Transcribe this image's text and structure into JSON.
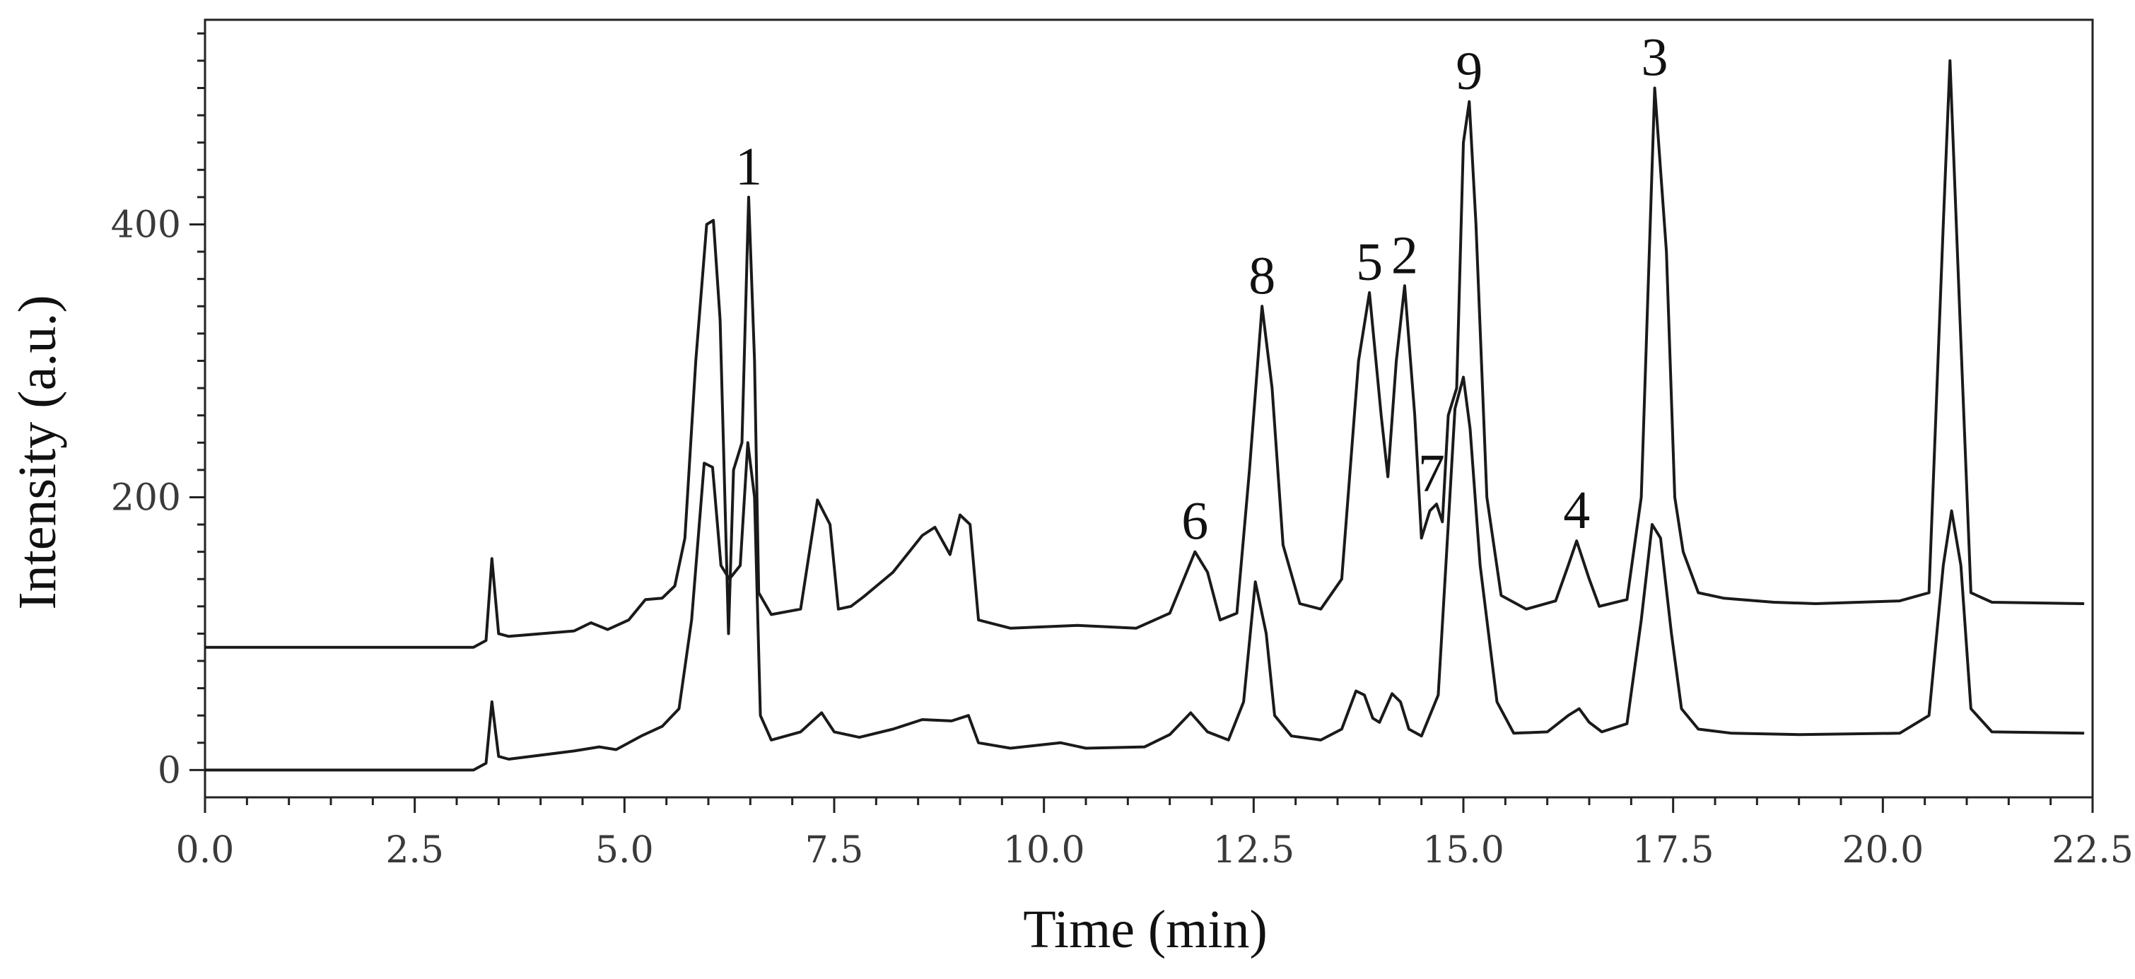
{
  "chart_data": {
    "type": "line",
    "title": "",
    "xlabel": "Time (min)",
    "ylabel": "Intensity (a.u.)",
    "xlim": [
      0,
      22.5
    ],
    "ylim": [
      -20,
      550
    ],
    "x_ticks": [
      "0.0",
      "2.5",
      "5.0",
      "7.5",
      "10.0",
      "12.5",
      "15.0",
      "17.5",
      "20.0",
      "22.5"
    ],
    "x_tick_values": [
      0,
      2.5,
      5,
      7.5,
      10,
      12.5,
      15,
      17.5,
      20,
      22.5
    ],
    "y_ticks": [
      "0",
      "200",
      "400"
    ],
    "y_tick_values": [
      0,
      200,
      400
    ],
    "grid": false,
    "legend": "none",
    "line_color": "#1a1a1a",
    "series": [
      {
        "baseline_start": 90,
        "baseline_end": 122,
        "points": [
          [
            0,
            90
          ],
          [
            3.2,
            90
          ],
          [
            3.35,
            95
          ],
          [
            3.42,
            155
          ],
          [
            3.5,
            100
          ],
          [
            3.62,
            98
          ],
          [
            4.4,
            102
          ],
          [
            4.6,
            108
          ],
          [
            4.8,
            103
          ],
          [
            5.05,
            110
          ],
          [
            5.25,
            125
          ],
          [
            5.45,
            126
          ],
          [
            5.6,
            135
          ],
          [
            5.72,
            170
          ],
          [
            5.85,
            300
          ],
          [
            5.98,
            400
          ],
          [
            6.06,
            403
          ],
          [
            6.14,
            330
          ],
          [
            6.24,
            100
          ],
          [
            6.3,
            220
          ],
          [
            6.4,
            240
          ],
          [
            6.48,
            420
          ],
          [
            6.55,
            300
          ],
          [
            6.6,
            130
          ],
          [
            6.75,
            114
          ],
          [
            7.1,
            118
          ],
          [
            7.3,
            198
          ],
          [
            7.45,
            180
          ],
          [
            7.55,
            118
          ],
          [
            7.7,
            120
          ],
          [
            7.85,
            127
          ],
          [
            8.2,
            145
          ],
          [
            8.55,
            172
          ],
          [
            8.7,
            178
          ],
          [
            8.88,
            158
          ],
          [
            9.0,
            187
          ],
          [
            9.12,
            180
          ],
          [
            9.22,
            110
          ],
          [
            9.6,
            104
          ],
          [
            10.4,
            106
          ],
          [
            11.1,
            104
          ],
          [
            11.5,
            115
          ],
          [
            11.8,
            160
          ],
          [
            11.95,
            145
          ],
          [
            12.1,
            110
          ],
          [
            12.3,
            115
          ],
          [
            12.45,
            220
          ],
          [
            12.6,
            340
          ],
          [
            12.72,
            280
          ],
          [
            12.85,
            165
          ],
          [
            13.05,
            122
          ],
          [
            13.3,
            118
          ],
          [
            13.55,
            140
          ],
          [
            13.75,
            300
          ],
          [
            13.88,
            350
          ],
          [
            14.02,
            260
          ],
          [
            14.1,
            215
          ],
          [
            14.2,
            300
          ],
          [
            14.3,
            355
          ],
          [
            14.42,
            260
          ],
          [
            14.5,
            170
          ],
          [
            14.6,
            190
          ],
          [
            14.68,
            195
          ],
          [
            14.75,
            182
          ],
          [
            14.82,
            260
          ],
          [
            14.92,
            280
          ],
          [
            15.0,
            460
          ],
          [
            15.07,
            490
          ],
          [
            15.15,
            400
          ],
          [
            15.28,
            200
          ],
          [
            15.45,
            128
          ],
          [
            15.75,
            118
          ],
          [
            16.1,
            124
          ],
          [
            16.25,
            150
          ],
          [
            16.35,
            168
          ],
          [
            16.5,
            140
          ],
          [
            16.62,
            120
          ],
          [
            16.95,
            125
          ],
          [
            17.12,
            200
          ],
          [
            17.28,
            500
          ],
          [
            17.42,
            380
          ],
          [
            17.52,
            200
          ],
          [
            17.62,
            160
          ],
          [
            17.8,
            130
          ],
          [
            18.1,
            126
          ],
          [
            18.7,
            123
          ],
          [
            19.2,
            122
          ],
          [
            20.2,
            124
          ],
          [
            20.55,
            130
          ],
          [
            20.72,
            400
          ],
          [
            20.8,
            520
          ],
          [
            20.92,
            330
          ],
          [
            21.05,
            130
          ],
          [
            21.3,
            123
          ],
          [
            22.4,
            122
          ]
        ]
      },
      {
        "baseline_start": 0,
        "baseline_end": 27,
        "points": [
          [
            0,
            0
          ],
          [
            3.2,
            0
          ],
          [
            3.35,
            5
          ],
          [
            3.42,
            50
          ],
          [
            3.5,
            10
          ],
          [
            3.62,
            8
          ],
          [
            4.4,
            14
          ],
          [
            4.7,
            17
          ],
          [
            4.9,
            15
          ],
          [
            5.2,
            25
          ],
          [
            5.45,
            32
          ],
          [
            5.65,
            45
          ],
          [
            5.8,
            110
          ],
          [
            5.95,
            225
          ],
          [
            6.05,
            222
          ],
          [
            6.15,
            150
          ],
          [
            6.25,
            140
          ],
          [
            6.38,
            150
          ],
          [
            6.47,
            240
          ],
          [
            6.55,
            200
          ],
          [
            6.62,
            40
          ],
          [
            6.75,
            22
          ],
          [
            7.1,
            28
          ],
          [
            7.35,
            42
          ],
          [
            7.5,
            28
          ],
          [
            7.8,
            24
          ],
          [
            8.2,
            30
          ],
          [
            8.55,
            37
          ],
          [
            8.9,
            36
          ],
          [
            9.1,
            40
          ],
          [
            9.22,
            20
          ],
          [
            9.6,
            16
          ],
          [
            10.2,
            20
          ],
          [
            10.5,
            16
          ],
          [
            11.2,
            17
          ],
          [
            11.5,
            26
          ],
          [
            11.75,
            42
          ],
          [
            11.95,
            28
          ],
          [
            12.2,
            22
          ],
          [
            12.38,
            50
          ],
          [
            12.52,
            138
          ],
          [
            12.65,
            100
          ],
          [
            12.75,
            40
          ],
          [
            12.95,
            25
          ],
          [
            13.3,
            22
          ],
          [
            13.55,
            30
          ],
          [
            13.72,
            58
          ],
          [
            13.82,
            55
          ],
          [
            13.92,
            38
          ],
          [
            14.0,
            35
          ],
          [
            14.15,
            56
          ],
          [
            14.25,
            50
          ],
          [
            14.35,
            30
          ],
          [
            14.5,
            25
          ],
          [
            14.7,
            55
          ],
          [
            14.82,
            180
          ],
          [
            14.9,
            265
          ],
          [
            15.0,
            288
          ],
          [
            15.08,
            250
          ],
          [
            15.2,
            150
          ],
          [
            15.4,
            50
          ],
          [
            15.6,
            27
          ],
          [
            16.0,
            28
          ],
          [
            16.25,
            40
          ],
          [
            16.38,
            45
          ],
          [
            16.5,
            35
          ],
          [
            16.65,
            28
          ],
          [
            16.95,
            34
          ],
          [
            17.12,
            110
          ],
          [
            17.25,
            180
          ],
          [
            17.35,
            170
          ],
          [
            17.48,
            100
          ],
          [
            17.6,
            45
          ],
          [
            17.8,
            30
          ],
          [
            18.2,
            27
          ],
          [
            19.0,
            26
          ],
          [
            20.2,
            27
          ],
          [
            20.55,
            40
          ],
          [
            20.72,
            150
          ],
          [
            20.82,
            190
          ],
          [
            20.93,
            150
          ],
          [
            21.05,
            45
          ],
          [
            21.3,
            28
          ],
          [
            22.4,
            27
          ]
        ]
      }
    ],
    "annotations": [
      {
        "text": "1",
        "x": 6.48,
        "y": 420
      },
      {
        "text": "8",
        "x": 12.6,
        "y": 340
      },
      {
        "text": "6",
        "x": 11.8,
        "y": 160
      },
      {
        "text": "5",
        "x": 13.88,
        "y": 350
      },
      {
        "text": "2",
        "x": 14.3,
        "y": 355
      },
      {
        "text": "7",
        "x": 14.62,
        "y": 195
      },
      {
        "text": "9",
        "x": 15.07,
        "y": 490
      },
      {
        "text": "4",
        "x": 16.35,
        "y": 168
      },
      {
        "text": "3",
        "x": 17.28,
        "y": 500
      }
    ]
  }
}
